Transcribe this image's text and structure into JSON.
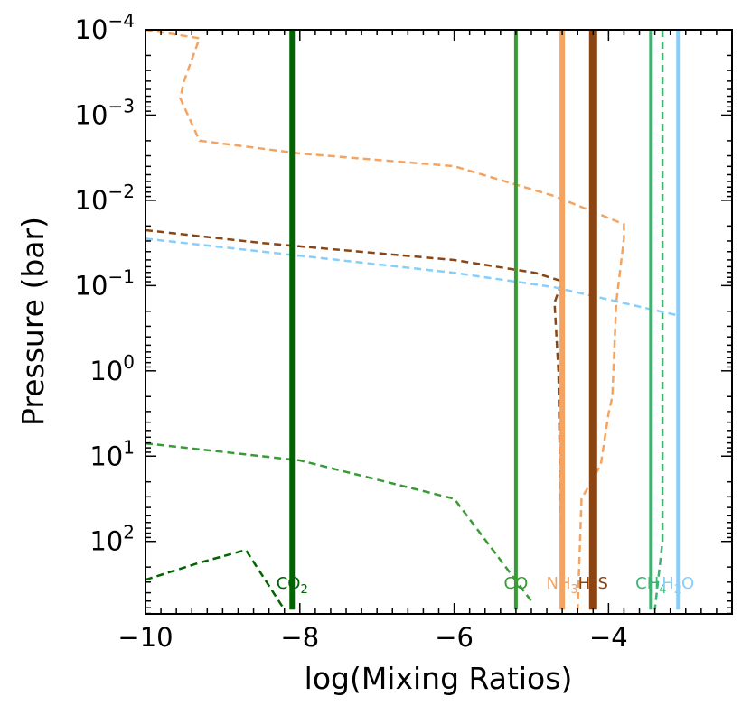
{
  "chart_data": {
    "type": "line",
    "title": "",
    "xlabel": "log(Mixing Ratios)",
    "ylabel": "Pressure (bar)",
    "xlim": [
      -10,
      -2.4
    ],
    "ylim_log10": [
      2.85,
      -4
    ],
    "y_axis": "log10 scale, inverted (pressure increases downward)",
    "x_ticks": [
      -10,
      -8,
      -6,
      -4
    ],
    "x_tick_labels": [
      "−10",
      "−8",
      "−6",
      "−4"
    ],
    "y_ticks": [
      {
        "exp": -4,
        "base": "10",
        "sup": "−4"
      },
      {
        "exp": -3,
        "base": "10",
        "sup": "−3"
      },
      {
        "exp": -2,
        "base": "10",
        "sup": "−2"
      },
      {
        "exp": -1,
        "base": "10",
        "sup": "−1"
      },
      {
        "exp": 0,
        "base": "10",
        "sup": "0"
      },
      {
        "exp": 1,
        "base": "10",
        "sup": "1"
      },
      {
        "exp": 2,
        "base": "10",
        "sup": "2"
      }
    ],
    "colors": {
      "CO2": "#006400",
      "CO": "#3a9a35",
      "NH3": "#f4a460",
      "H2S": "#8b4513",
      "CH4": "#3cb371",
      "H2O": "#87cefa"
    },
    "series_solid": [
      {
        "name": "CO2",
        "x": -8.1,
        "width": 6
      },
      {
        "name": "CO",
        "x": -5.2,
        "width": 4
      },
      {
        "name": "NH3",
        "x": -4.6,
        "width": 6
      },
      {
        "name": "H2S",
        "x": -4.2,
        "width": 9
      },
      {
        "name": "CH4",
        "x": -3.45,
        "width": 4
      },
      {
        "name": "H2O",
        "x": -3.1,
        "width": 4
      }
    ],
    "series_dashed": [
      {
        "name": "CO2",
        "points": [
          [
            -10,
            2.45
          ],
          [
            -9.3,
            2.25
          ],
          [
            -8.7,
            2.1
          ],
          [
            -8.2,
            2.8
          ]
        ]
      },
      {
        "name": "CO",
        "points": [
          [
            -10,
            0.85
          ],
          [
            -8,
            1.05
          ],
          [
            -6,
            1.5
          ],
          [
            -5,
            2.7
          ]
        ]
      },
      {
        "name": "NH3",
        "points": [
          [
            -10,
            -4
          ],
          [
            -9.3,
            -3.9
          ],
          [
            -9.5,
            -3.4
          ],
          [
            -9.55,
            -3.2
          ],
          [
            -9.3,
            -2.7
          ],
          [
            -8.0,
            -2.55
          ],
          [
            -6.0,
            -2.4
          ],
          [
            -4.7,
            -2.05
          ],
          [
            -3.8,
            -1.72
          ],
          [
            -3.8,
            -1.55
          ],
          [
            -3.9,
            -0.8
          ],
          [
            -3.95,
            0.3
          ],
          [
            -4.0,
            0.5
          ],
          [
            -4.1,
            1.1
          ],
          [
            -4.35,
            1.5
          ],
          [
            -4.4,
            2.8
          ]
        ]
      },
      {
        "name": "H2S",
        "points": [
          [
            -10,
            -1.65
          ],
          [
            -8.5,
            -1.5
          ],
          [
            -6.0,
            -1.3
          ],
          [
            -4.95,
            -1.15
          ],
          [
            -4.6,
            -1.05
          ],
          [
            -4.7,
            -0.8
          ],
          [
            -4.65,
            0.0
          ],
          [
            -4.6,
            2.8
          ]
        ]
      },
      {
        "name": "CH4",
        "points": [
          [
            -3.3,
            -4
          ],
          [
            -3.3,
            2.0
          ],
          [
            -3.4,
            2.8
          ]
        ]
      },
      {
        "name": "H2O",
        "points": [
          [
            -10,
            -1.55
          ],
          [
            -8,
            -1.35
          ],
          [
            -6,
            -1.15
          ],
          [
            -4.7,
            -0.98
          ],
          [
            -3.1,
            -0.65
          ],
          [
            -3.1,
            2.8
          ]
        ]
      }
    ],
    "molecule_labels": [
      {
        "name": "CO2",
        "base": "CO",
        "sub": "2",
        "post": "",
        "x": -8.1
      },
      {
        "name": "CO",
        "base": "CO",
        "sub": "",
        "post": "",
        "x": -5.2
      },
      {
        "name": "NH3",
        "base": "NH",
        "sub": "3",
        "post": "",
        "x": -4.6
      },
      {
        "name": "H2S",
        "base": "H",
        "sub": "2",
        "post": "S",
        "x": -4.2
      },
      {
        "name": "CH4",
        "base": "CH",
        "sub": "4",
        "post": "",
        "x": -3.45
      },
      {
        "name": "H2O",
        "base": "H",
        "sub": "2",
        "post": "O",
        "x": -3.1
      }
    ]
  }
}
